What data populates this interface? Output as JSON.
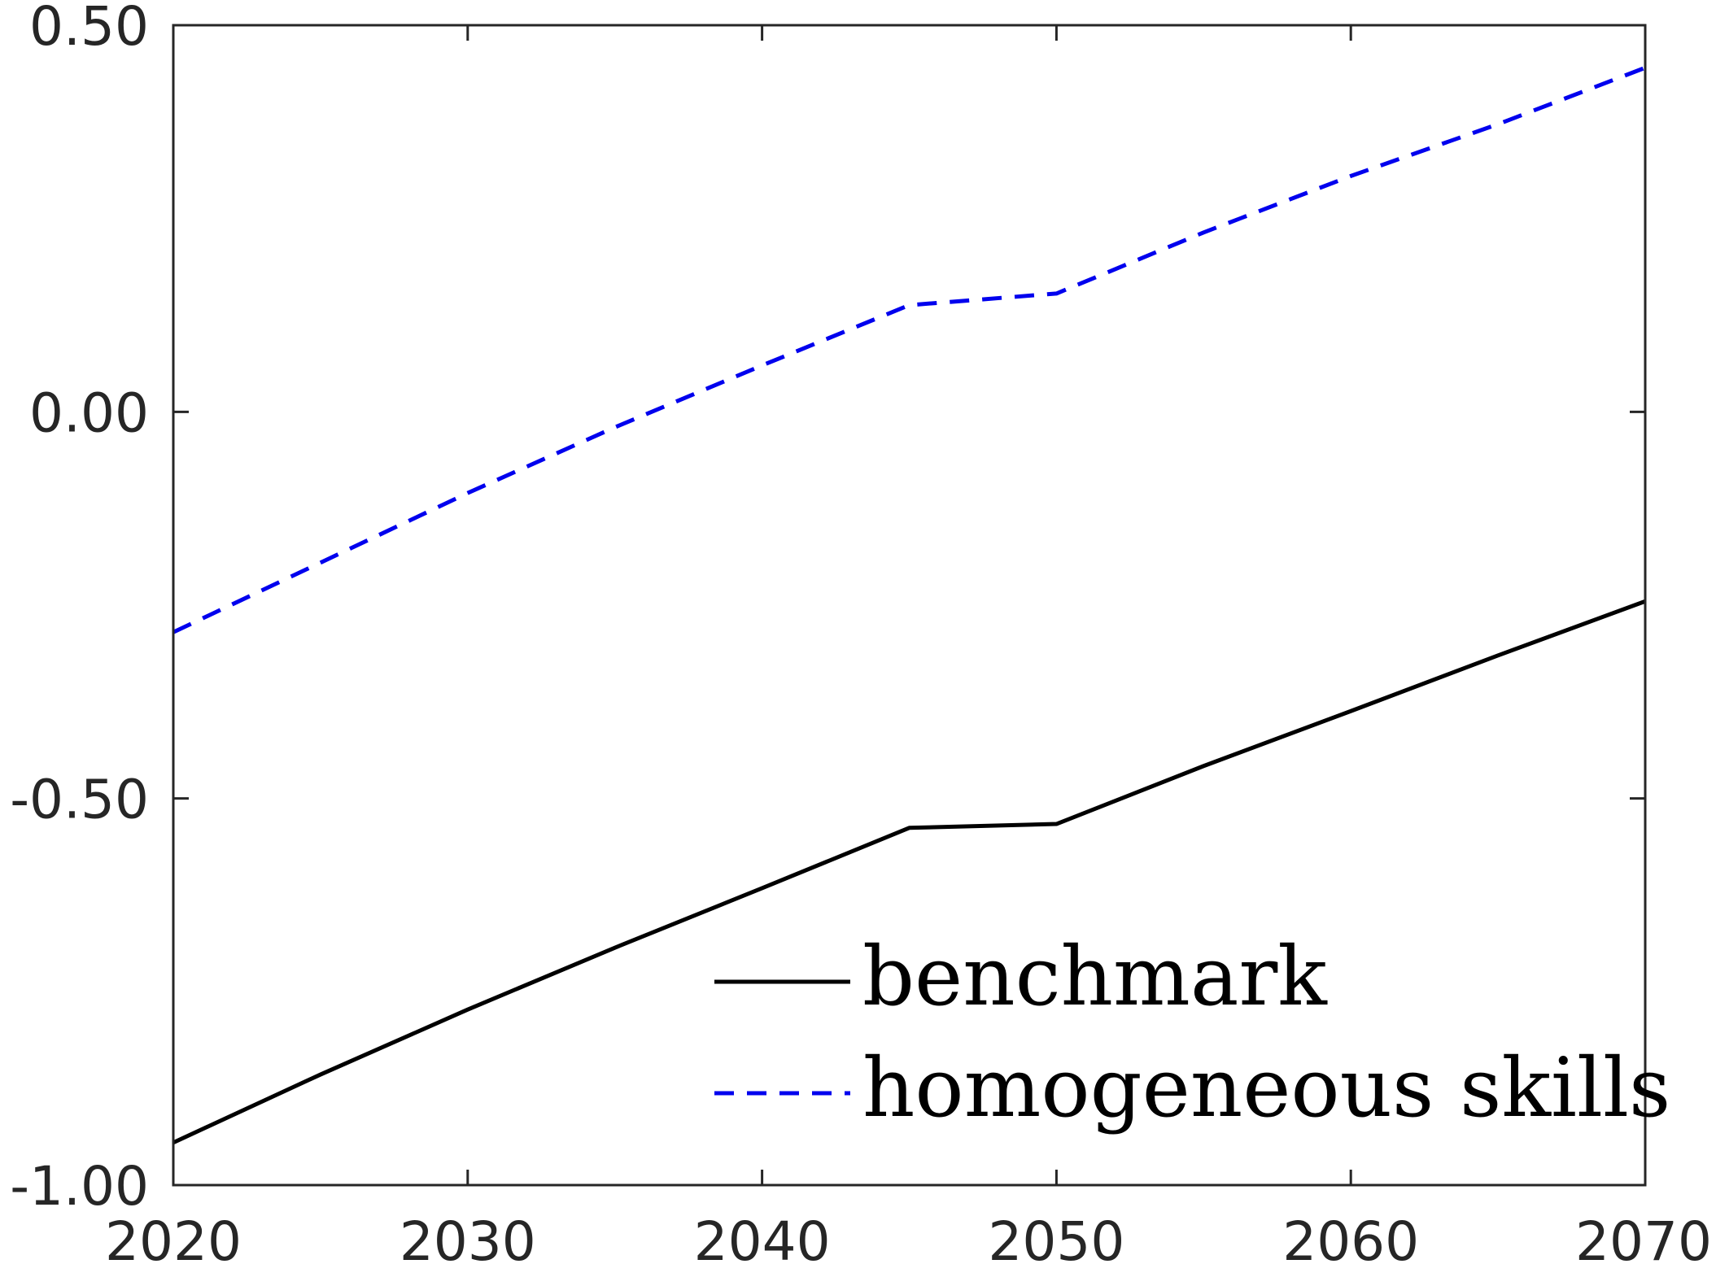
{
  "chart_data": {
    "type": "line",
    "title": "",
    "xlabel": "",
    "ylabel": "",
    "xlim": [
      2020,
      2070
    ],
    "ylim": [
      -1.0,
      0.5
    ],
    "xticks": [
      2020,
      2030,
      2040,
      2050,
      2060,
      2070
    ],
    "yticks": [
      -1.0,
      -0.5,
      0.0,
      0.5
    ],
    "xtick_labels": [
      "2020",
      "2030",
      "2040",
      "2050",
      "2060",
      "2070"
    ],
    "ytick_labels": [
      "-1.00",
      "-0.50",
      "0.00",
      "0.50"
    ],
    "grid": false,
    "legend_position": "bottom-right",
    "x": [
      2020,
      2025,
      2030,
      2035,
      2040,
      2045,
      2050,
      2055,
      2060,
      2065,
      2070
    ],
    "series": [
      {
        "name": "benchmark",
        "color": "#000000",
        "line_style": "solid",
        "values": [
          -0.945,
          -0.857,
          -0.773,
          -0.693,
          -0.616,
          -0.538,
          -0.533,
          -0.458,
          -0.387,
          -0.315,
          -0.245
        ]
      },
      {
        "name": "homogeneous skills",
        "color": "#0000ee",
        "line_style": "dashed",
        "values": [
          -0.285,
          -0.195,
          -0.105,
          -0.02,
          0.06,
          0.138,
          0.153,
          0.232,
          0.305,
          0.372,
          0.445
        ]
      }
    ]
  }
}
